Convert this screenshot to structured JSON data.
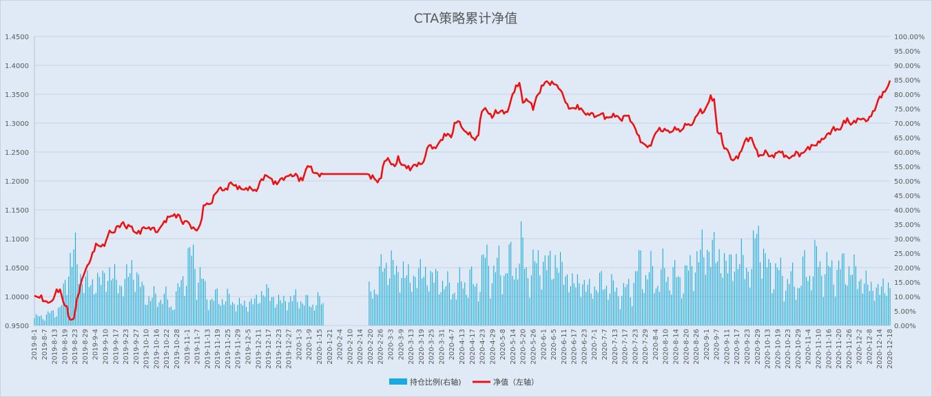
{
  "chart_data": {
    "type": "bar+line",
    "title": "CTA策略累计净值",
    "legend": {
      "position": "bottom",
      "items": [
        {
          "label": "持仓比例(右轴)",
          "kind": "bar",
          "color": "#18a9dd"
        },
        {
          "label": "净值（左轴）",
          "kind": "line",
          "color": "#ee1111"
        }
      ]
    },
    "left_axis": {
      "range": [
        0.95,
        1.45
      ],
      "ticks": [
        "0.9500",
        "1.0000",
        "1.0500",
        "1.1000",
        "1.1500",
        "1.2000",
        "1.2500",
        "1.3000",
        "1.3500",
        "1.4000",
        "1.4500"
      ]
    },
    "right_axis": {
      "range": [
        0,
        100
      ],
      "ticks": [
        "0.00%",
        "5.00%",
        "10.00%",
        "15.00%",
        "20.00%",
        "25.00%",
        "30.00%",
        "35.00%",
        "40.00%",
        "45.00%",
        "50.00%",
        "55.00%",
        "60.00%",
        "65.00%",
        "70.00%",
        "75.00%",
        "80.00%",
        "85.00%",
        "90.00%",
        "95.00%",
        "100.00%"
      ]
    },
    "grid": "horizontal",
    "x_tick_labels": [
      "2019-8-1",
      "2019-8-7",
      "2019-8-13",
      "2019-8-19",
      "2019-8-23",
      "2019-8-29",
      "2019-9-4",
      "2019-9-10",
      "2019-9-17",
      "2019-9-23",
      "2019-9-27",
      "2019-10-10",
      "2019-10-16",
      "2019-10-22",
      "2019-10-28",
      "2019-11-1",
      "2019-11-7",
      "2019-11-13",
      "2019-11-19",
      "2019-11-25",
      "2019-11-29",
      "2019-12-5",
      "2019-12-11",
      "2019-12-17",
      "2019-12-23",
      "2019-12-27",
      "2020-1-3",
      "2020-1-9",
      "2020-1-15",
      "2020-1-21",
      "2020-2-4",
      "2020-2-10",
      "2020-2-14",
      "2020-2-20",
      "2020-2-26",
      "2020-3-3",
      "2020-3-9",
      "2020-3-13",
      "2020-3-19",
      "2020-3-25",
      "2020-3-31",
      "2020-4-7",
      "2020-4-13",
      "2020-4-17",
      "2020-4-23",
      "2020-4-29",
      "2020-5-8",
      "2020-5-14",
      "2020-5-20",
      "2020-5-26",
      "2020-6-1",
      "2020-6-5",
      "2020-6-11",
      "2020-6-17",
      "2020-6-23",
      "2020-7-1",
      "2020-7-7",
      "2020-7-13",
      "2020-7-17",
      "2020-7-23",
      "2020-7-29",
      "2020-8-4",
      "2020-8-10",
      "2020-8-14",
      "2020-8-20",
      "2020-8-26",
      "2020-9-1",
      "2020-9-7",
      "2020-9-11",
      "2020-9-17",
      "2020-9-23",
      "2020-9-29",
      "2020-10-13",
      "2020-10-19",
      "2020-10-23",
      "2020-10-29",
      "2020-11-4",
      "2020-11-10",
      "2020-11-16",
      "2020-11-20",
      "2020-11-26",
      "2020-12-2",
      "2020-12-8",
      "2020-12-14",
      "2020-12-18"
    ],
    "net_value_keypoints": [
      [
        0,
        1.0
      ],
      [
        4,
        0.999
      ],
      [
        6,
        0.991
      ],
      [
        10,
        0.99
      ],
      [
        13,
        1.01
      ],
      [
        15,
        1.011
      ],
      [
        17,
        0.99
      ],
      [
        19,
        0.98
      ],
      [
        21,
        0.958
      ],
      [
        23,
        0.962
      ],
      [
        25,
        0.995
      ],
      [
        27,
        1.02
      ],
      [
        29,
        1.04
      ],
      [
        33,
        1.065
      ],
      [
        36,
        1.09
      ],
      [
        38,
        1.088
      ],
      [
        40,
        1.087
      ],
      [
        42,
        1.095
      ],
      [
        44,
        1.115
      ],
      [
        46,
        1.108
      ],
      [
        48,
        1.12
      ],
      [
        50,
        1.122
      ],
      [
        52,
        1.128
      ],
      [
        54,
        1.118
      ],
      [
        56,
        1.125
      ],
      [
        58,
        1.113
      ],
      [
        60,
        1.11
      ],
      [
        62,
        1.112
      ],
      [
        64,
        1.12
      ],
      [
        66,
        1.118
      ],
      [
        70,
        1.118
      ],
      [
        72,
        1.11
      ],
      [
        74,
        1.122
      ],
      [
        76,
        1.128
      ],
      [
        78,
        1.136
      ],
      [
        80,
        1.14
      ],
      [
        85,
        1.14
      ],
      [
        87,
        1.125
      ],
      [
        89,
        1.133
      ],
      [
        91,
        1.123
      ],
      [
        93,
        1.118
      ],
      [
        95,
        1.115
      ],
      [
        97,
        1.122
      ],
      [
        99,
        1.155
      ],
      [
        101,
        1.162
      ],
      [
        103,
        1.158
      ],
      [
        105,
        1.173
      ],
      [
        107,
        1.183
      ],
      [
        109,
        1.188
      ],
      [
        111,
        1.183
      ],
      [
        113,
        1.188
      ],
      [
        115,
        1.198
      ],
      [
        117,
        1.192
      ],
      [
        120,
        1.188
      ],
      [
        123,
        1.185
      ],
      [
        126,
        1.188
      ],
      [
        130,
        1.182
      ],
      [
        132,
        1.198
      ],
      [
        134,
        1.205
      ],
      [
        136,
        1.21
      ],
      [
        138,
        1.205
      ],
      [
        140,
        1.198
      ],
      [
        142,
        1.195
      ],
      [
        144,
        1.203
      ],
      [
        147,
        1.205
      ],
      [
        149,
        1.211
      ],
      [
        151,
        1.208
      ],
      [
        153,
        1.212
      ],
      [
        155,
        1.203
      ],
      [
        157,
        1.202
      ],
      [
        159,
        1.22
      ],
      [
        161,
        1.228
      ],
      [
        163,
        1.216
      ],
      [
        165,
        1.213
      ],
      [
        167,
        1.21
      ],
      [
        169,
        1.212
      ],
      [
        195,
        1.212
      ],
      [
        197,
        1.207
      ],
      [
        199,
        1.206
      ],
      [
        201,
        1.197
      ],
      [
        203,
        1.208
      ],
      [
        205,
        1.235
      ],
      [
        207,
        1.238
      ],
      [
        209,
        1.23
      ],
      [
        211,
        1.225
      ],
      [
        213,
        1.24
      ],
      [
        215,
        1.228
      ],
      [
        218,
        1.225
      ],
      [
        220,
        1.22
      ],
      [
        222,
        1.227
      ],
      [
        224,
        1.228
      ],
      [
        226,
        1.23
      ],
      [
        228,
        1.232
      ],
      [
        230,
        1.258
      ],
      [
        232,
        1.262
      ],
      [
        234,
        1.255
      ],
      [
        236,
        1.262
      ],
      [
        238,
        1.27
      ],
      [
        240,
        1.278
      ],
      [
        242,
        1.282
      ],
      [
        244,
        1.275
      ],
      [
        246,
        1.298
      ],
      [
        248,
        1.305
      ],
      [
        250,
        1.295
      ],
      [
        252,
        1.285
      ],
      [
        254,
        1.283
      ],
      [
        256,
        1.278
      ],
      [
        258,
        1.27
      ],
      [
        260,
        1.282
      ],
      [
        262,
        1.322
      ],
      [
        264,
        1.325
      ],
      [
        266,
        1.318
      ],
      [
        268,
        1.31
      ],
      [
        270,
        1.32
      ],
      [
        272,
        1.318
      ],
      [
        274,
        1.322
      ],
      [
        276,
        1.316
      ],
      [
        278,
        1.328
      ],
      [
        280,
        1.35
      ],
      [
        282,
        1.362
      ],
      [
        284,
        1.37
      ],
      [
        286,
        1.336
      ],
      [
        288,
        1.34
      ],
      [
        290,
        1.338
      ],
      [
        292,
        1.325
      ],
      [
        294,
        1.345
      ],
      [
        296,
        1.355
      ],
      [
        298,
        1.368
      ],
      [
        300,
        1.372
      ],
      [
        302,
        1.368
      ],
      [
        304,
        1.37
      ],
      [
        306,
        1.364
      ],
      [
        308,
        1.358
      ],
      [
        310,
        1.345
      ],
      [
        312,
        1.33
      ],
      [
        314,
        1.325
      ],
      [
        316,
        1.326
      ],
      [
        318,
        1.328
      ],
      [
        320,
        1.325
      ],
      [
        322,
        1.318
      ],
      [
        324,
        1.314
      ],
      [
        326,
        1.318
      ],
      [
        328,
        1.312
      ],
      [
        330,
        1.312
      ],
      [
        332,
        1.318
      ],
      [
        334,
        1.31
      ],
      [
        336,
        1.309
      ],
      [
        338,
        1.312
      ],
      [
        340,
        1.314
      ],
      [
        342,
        1.31
      ],
      [
        344,
        1.305
      ],
      [
        346,
        1.315
      ],
      [
        348,
        1.311
      ],
      [
        350,
        1.3
      ],
      [
        352,
        1.29
      ],
      [
        354,
        1.275
      ],
      [
        356,
        1.265
      ],
      [
        358,
        1.262
      ],
      [
        360,
        1.258
      ],
      [
        362,
        1.27
      ],
      [
        364,
        1.285
      ],
      [
        366,
        1.29
      ],
      [
        368,
        1.286
      ],
      [
        370,
        1.29
      ],
      [
        372,
        1.283
      ],
      [
        374,
        1.288
      ],
      [
        376,
        1.292
      ],
      [
        378,
        1.285
      ],
      [
        380,
        1.292
      ],
      [
        382,
        1.3
      ],
      [
        384,
        1.295
      ],
      [
        386,
        1.302
      ],
      [
        388,
        1.315
      ],
      [
        390,
        1.322
      ],
      [
        392,
        1.318
      ],
      [
        394,
        1.332
      ],
      [
        396,
        1.345
      ],
      [
        398,
        1.34
      ],
      [
        400,
        1.285
      ],
      [
        402,
        1.28
      ],
      [
        404,
        1.255
      ],
      [
        406,
        1.255
      ],
      [
        408,
        1.236
      ],
      [
        410,
        1.238
      ],
      [
        412,
        1.242
      ],
      [
        414,
        1.252
      ],
      [
        416,
        1.27
      ],
      [
        418,
        1.272
      ],
      [
        420,
        1.274
      ],
      [
        422,
        1.258
      ],
      [
        424,
        1.245
      ],
      [
        426,
        1.243
      ],
      [
        428,
        1.252
      ],
      [
        430,
        1.244
      ],
      [
        432,
        1.242
      ],
      [
        434,
        1.246
      ],
      [
        436,
        1.252
      ],
      [
        438,
        1.248
      ],
      [
        440,
        1.242
      ],
      [
        442,
        1.24
      ],
      [
        444,
        1.242
      ],
      [
        446,
        1.25
      ],
      [
        448,
        1.245
      ],
      [
        450,
        1.248
      ],
      [
        452,
        1.255
      ],
      [
        454,
        1.258
      ],
      [
        456,
        1.262
      ],
      [
        458,
        1.262
      ],
      [
        460,
        1.27
      ],
      [
        462,
        1.272
      ],
      [
        464,
        1.28
      ],
      [
        466,
        1.283
      ],
      [
        468,
        1.292
      ],
      [
        470,
        1.288
      ],
      [
        472,
        1.29
      ],
      [
        474,
        1.302
      ],
      [
        476,
        1.306
      ],
      [
        478,
        1.298
      ],
      [
        480,
        1.302
      ],
      [
        482,
        1.306
      ],
      [
        484,
        1.308
      ],
      [
        486,
        1.306
      ],
      [
        488,
        1.304
      ],
      [
        490,
        1.315
      ],
      [
        492,
        1.322
      ],
      [
        494,
        1.34
      ],
      [
        496,
        1.348
      ],
      [
        498,
        1.355
      ],
      [
        500,
        1.365
      ],
      [
        501,
        1.372
      ]
    ],
    "position_ratio_keypoints": [
      [
        0,
        2.5
      ],
      [
        10,
        4.0
      ],
      [
        16,
        6.5
      ],
      [
        21,
        25.0
      ],
      [
        24,
        22.0
      ],
      [
        30,
        14.0
      ],
      [
        38,
        15.0
      ],
      [
        45,
        18.0
      ],
      [
        50,
        13.0
      ],
      [
        55,
        17.0
      ],
      [
        58,
        20.0
      ],
      [
        63,
        12.0
      ],
      [
        68,
        9.0
      ],
      [
        75,
        10.0
      ],
      [
        80,
        7.0
      ],
      [
        84,
        10.0
      ],
      [
        88,
        20.0
      ],
      [
        93,
        22.0
      ],
      [
        96,
        19.0
      ],
      [
        100,
        11.0
      ],
      [
        105,
        9.0
      ],
      [
        110,
        9.5
      ],
      [
        115,
        8.5
      ],
      [
        120,
        7.0
      ],
      [
        125,
        7.5
      ],
      [
        130,
        8.5
      ],
      [
        135,
        12.0
      ],
      [
        140,
        9.0
      ],
      [
        145,
        8.0
      ],
      [
        150,
        9.0
      ],
      [
        155,
        9.0
      ],
      [
        160,
        7.5
      ],
      [
        165,
        8.0
      ],
      [
        169,
        7.5
      ],
      [
        170,
        0
      ],
      [
        195,
        0
      ],
      [
        196,
        10.0
      ],
      [
        200,
        14.0
      ],
      [
        204,
        19.0
      ],
      [
        208,
        22.0
      ],
      [
        212,
        17.0
      ],
      [
        216,
        19.0
      ],
      [
        220,
        15.0
      ],
      [
        225,
        18.0
      ],
      [
        230,
        17.0
      ],
      [
        235,
        16.0
      ],
      [
        240,
        14.0
      ],
      [
        245,
        12.0
      ],
      [
        250,
        14.0
      ],
      [
        255,
        16.0
      ],
      [
        258,
        12.0
      ],
      [
        262,
        20.0
      ],
      [
        266,
        21.0
      ],
      [
        270,
        18.0
      ],
      [
        275,
        20.0
      ],
      [
        280,
        20.0
      ],
      [
        285,
        25.0
      ],
      [
        290,
        17.0
      ],
      [
        295,
        22.0
      ],
      [
        300,
        20.0
      ],
      [
        305,
        22.0
      ],
      [
        310,
        18.0
      ],
      [
        315,
        14.0
      ],
      [
        320,
        15.0
      ],
      [
        325,
        12.0
      ],
      [
        330,
        14.0
      ],
      [
        335,
        14.0
      ],
      [
        340,
        12.0
      ],
      [
        345,
        11.0
      ],
      [
        350,
        14.0
      ],
      [
        355,
        20.0
      ],
      [
        360,
        17.0
      ],
      [
        365,
        16.0
      ],
      [
        370,
        18.0
      ],
      [
        375,
        16.0
      ],
      [
        380,
        16.0
      ],
      [
        385,
        20.0
      ],
      [
        390,
        24.0
      ],
      [
        395,
        26.0
      ],
      [
        400,
        24.0
      ],
      [
        405,
        20.0
      ],
      [
        410,
        22.0
      ],
      [
        415,
        22.0
      ],
      [
        420,
        18.0
      ],
      [
        423,
        34.0
      ],
      [
        425,
        30.0
      ],
      [
        428,
        19.0
      ],
      [
        432,
        20.0
      ],
      [
        436,
        17.0
      ],
      [
        440,
        16.0
      ],
      [
        445,
        14.0
      ],
      [
        450,
        17.0
      ],
      [
        455,
        20.0
      ],
      [
        460,
        21.0
      ],
      [
        465,
        18.0
      ],
      [
        470,
        19.0
      ],
      [
        475,
        20.0
      ],
      [
        480,
        18.0
      ],
      [
        485,
        15.0
      ],
      [
        490,
        13.0
      ],
      [
        495,
        12.0
      ],
      [
        501,
        14.0
      ]
    ]
  }
}
